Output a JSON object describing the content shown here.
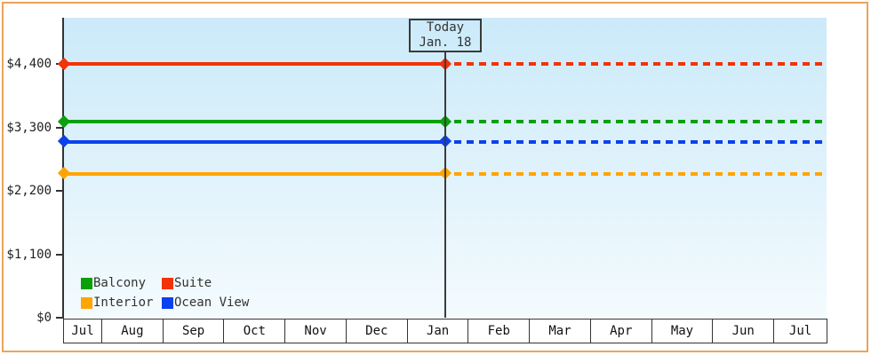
{
  "window": {
    "frame_border_color": "#eaa45c",
    "background": "#ffffff"
  },
  "chart_data": {
    "type": "line",
    "title": "",
    "description": "Cruise cabin price history/forecast chart; solid lines before today, dashed projected lines after today",
    "today_label": {
      "line1": "Today",
      "line2": "Jan. 18"
    },
    "today_fraction": 0.5,
    "x_months": [
      "Jul",
      "Aug",
      "Sep",
      "Oct",
      "Nov",
      "Dec",
      "Jan",
      "Feb",
      "Mar",
      "Apr",
      "May",
      "Jun",
      "Jul"
    ],
    "yticks": [
      {
        "label": "$0",
        "value": 0
      },
      {
        "label": "$1,100",
        "value": 1100
      },
      {
        "label": "$2,200",
        "value": 2200
      },
      {
        "label": "$3,300",
        "value": 3300
      },
      {
        "label": "$4,400",
        "value": 4400
      }
    ],
    "ylim": [
      0,
      5200
    ],
    "grid": false,
    "legend_position": "bottom-left",
    "series": [
      {
        "name": "Suite",
        "value": 4400,
        "color": "#f43208"
      },
      {
        "name": "Balcony",
        "value": 3400,
        "color": "#0aa00a"
      },
      {
        "name": "Ocean View",
        "value": 3050,
        "color": "#0a40ee"
      },
      {
        "name": "Interior",
        "value": 2500,
        "color": "#ffa502"
      }
    ],
    "legend_items": [
      {
        "label": "Balcony",
        "color": "#0aa00a"
      },
      {
        "label": "Suite",
        "color": "#f43208"
      },
      {
        "label": "Interior",
        "color": "#ffa502"
      },
      {
        "label": "Ocean View",
        "color": "#0a40ee"
      }
    ],
    "line_style": {
      "before_today": "solid",
      "after_today": "dashed",
      "marker": "diamond"
    },
    "plot_background_top": "#cbeaf9",
    "plot_background_bottom": "#f4fbfe",
    "axis_color": "#333333"
  }
}
